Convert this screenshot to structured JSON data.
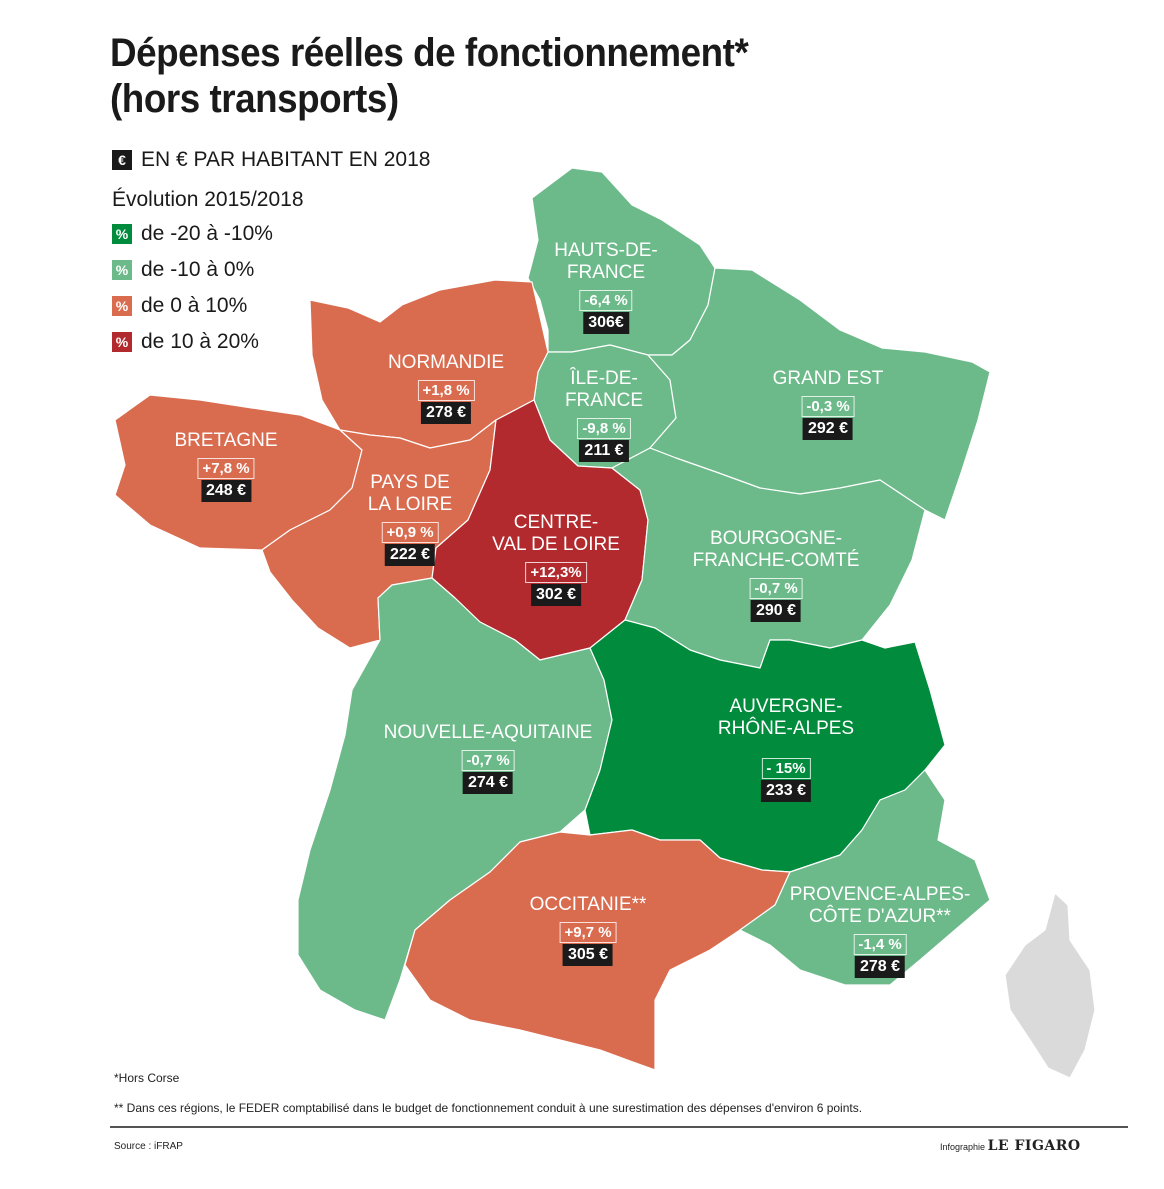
{
  "title_line1": "Dépenses réelles de fonctionnement*",
  "title_line2": "(hors transports)",
  "legend": {
    "unit_symbol": "€",
    "unit_label": "EN € PAR HABITANT EN 2018",
    "evolution_title": "Évolution 2015/2018",
    "pct_symbol": "%",
    "classes": [
      {
        "label": "de -20 à -10%",
        "color": "#008c3c"
      },
      {
        "label": "de -10 à 0%",
        "color": "#6cba8a"
      },
      {
        "label": "de 0 à 10%",
        "color": "#d96b4f"
      },
      {
        "label": "de 10 à 20%",
        "color": "#b22a2d"
      }
    ]
  },
  "regions": {
    "hauts_de_france": {
      "name_line1": "HAUTS-DE-",
      "name_line2": "FRANCE",
      "evolution": "-6,4 %",
      "value": "306€",
      "color": "#6cba8a"
    },
    "ile_de_france": {
      "name_line1": "ÎLE-DE-",
      "name_line2": "FRANCE",
      "evolution": "-9,8 %",
      "value": "211 €",
      "color": "#6cba8a"
    },
    "grand_est": {
      "name_line1": "GRAND EST",
      "evolution": "-0,3 %",
      "value": "292 €",
      "color": "#6cba8a"
    },
    "normandie": {
      "name_line1": "NORMANDIE",
      "evolution": "+1,8 %",
      "value": "278 €",
      "color": "#d96b4f"
    },
    "bretagne": {
      "name_line1": "BRETAGNE",
      "evolution": "+7,8 %",
      "value": "248 €",
      "color": "#d96b4f"
    },
    "pays_de_la_loire": {
      "name_line1": "PAYS DE",
      "name_line2": "LA LOIRE",
      "evolution": "+0,9 %",
      "value": "222 €",
      "color": "#d96b4f"
    },
    "centre_val_de_loire": {
      "name_line1": "CENTRE-",
      "name_line2": "VAL DE LOIRE",
      "evolution": "+12,3%",
      "value": "302 €",
      "color": "#b22a2d"
    },
    "bourgogne_franche_comte": {
      "name_line1": "BOURGOGNE-",
      "name_line2": "FRANCHE-COMTÉ",
      "evolution": "-0,7 %",
      "value": "290 €",
      "color": "#6cba8a"
    },
    "nouvelle_aquitaine": {
      "name_line1": "NOUVELLE-AQUITAINE",
      "evolution": "-0,7 %",
      "value": "274 €",
      "color": "#6cba8a"
    },
    "auvergne_rhone_alpes": {
      "name_line1": "AUVERGNE-",
      "name_line2": "RHÔNE-ALPES",
      "evolution": "- 15%",
      "value": "233 €",
      "color": "#008c3c"
    },
    "occitanie": {
      "name_line1": "OCCITANIE**",
      "evolution": "+9,7 %",
      "value": "305 €",
      "color": "#d96b4f"
    },
    "paca": {
      "name_line1": "PROVENCE-ALPES-",
      "name_line2": "CÔTE D'AZUR**",
      "evolution": "-1,4 %",
      "value": "278 €",
      "color": "#6cba8a"
    },
    "corse": {
      "color": "#dadada"
    }
  },
  "footnotes": {
    "hors_corse": "*Hors Corse",
    "feder": "** Dans ces régions, le FEDER comptabilisé dans le budget de fonctionnement conduit à une surestimation des dépenses d'environ 6 points."
  },
  "source": "Source : iFRAP",
  "credit_prefix": "Infographie",
  "credit_brand": "LE FIGARO"
}
